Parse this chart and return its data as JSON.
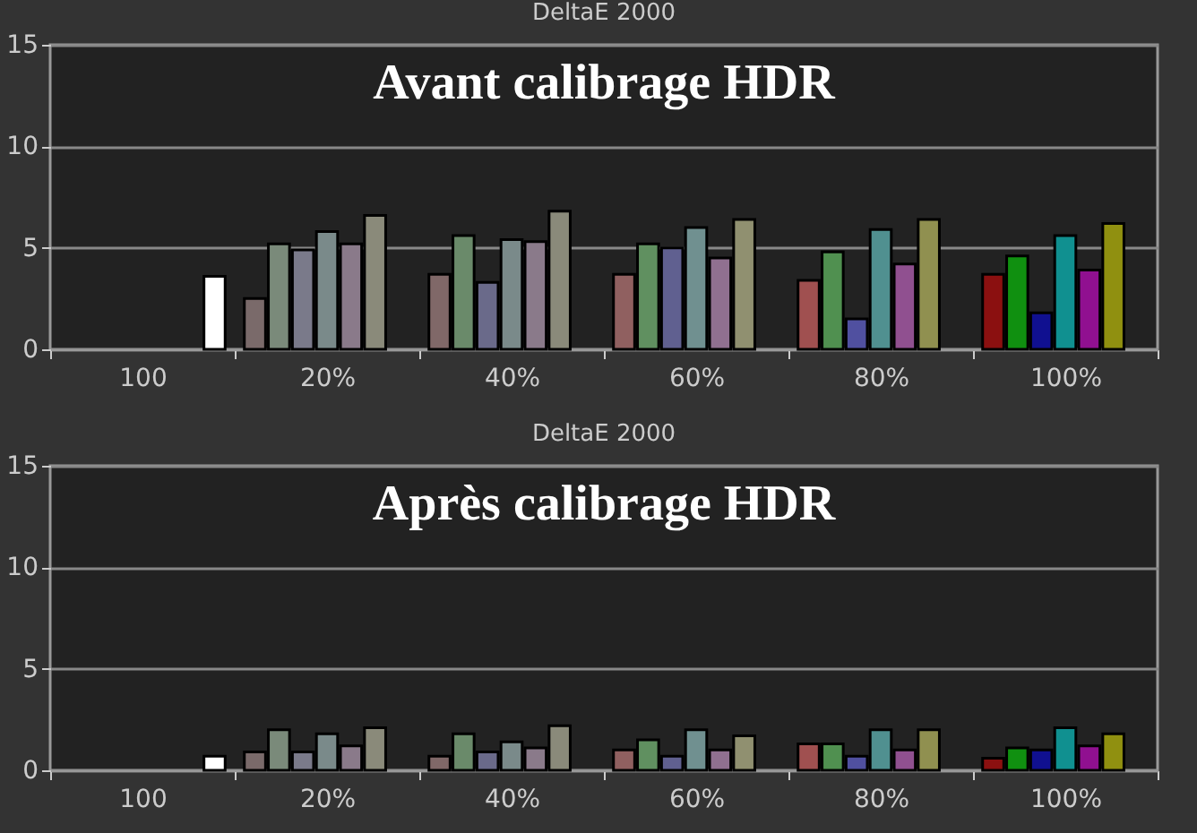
{
  "chart_data": [
    {
      "type": "bar",
      "title": "DeltaE 2000",
      "annotations": [
        "Avant calibrage HDR"
      ],
      "categories": [
        "100",
        "20%",
        "40%",
        "60%",
        "80%",
        "100%"
      ],
      "ylim": [
        0,
        15
      ],
      "yticks": [
        0,
        5,
        10,
        15
      ],
      "grid": "y",
      "series": [
        {
          "colors": [
            null,
            "#7a6a6a",
            "#806868",
            "#906060",
            "#a05050",
            "#8b1010"
          ],
          "values": [
            null,
            2.5,
            3.7,
            3.7,
            3.4,
            3.7
          ]
        },
        {
          "colors": [
            null,
            "#7a8a7a",
            "#6a8a6a",
            "#609060",
            "#509050",
            "#109010"
          ],
          "values": [
            null,
            5.2,
            5.6,
            5.2,
            4.8,
            4.6
          ]
        },
        {
          "colors": [
            null,
            "#7a7a8a",
            "#6a6a8a",
            "#606090",
            "#5050a0",
            "#101090"
          ],
          "values": [
            null,
            4.9,
            3.3,
            5.0,
            1.5,
            1.8
          ]
        },
        {
          "colors": [
            null,
            "#7a8a8a",
            "#7a8a8a",
            "#709090",
            "#509090",
            "#109090"
          ],
          "values": [
            null,
            5.8,
            5.4,
            6.0,
            5.9,
            5.6
          ]
        },
        {
          "colors": [
            null,
            "#8a7a8a",
            "#8a7a8a",
            "#907090",
            "#905090",
            "#901090"
          ],
          "values": [
            null,
            5.2,
            5.3,
            4.5,
            4.2,
            3.9
          ]
        },
        {
          "colors": [
            null,
            "#8a8a7a",
            "#8a8a7a",
            "#909070",
            "#909050",
            "#909010"
          ],
          "values": [
            null,
            6.6,
            6.8,
            6.4,
            6.4,
            6.2
          ]
        },
        {
          "colors": [
            "#ffffff",
            null,
            null,
            null,
            null,
            null
          ],
          "values": [
            3.6,
            null,
            null,
            null,
            null,
            null
          ]
        }
      ]
    },
    {
      "type": "bar",
      "title": "DeltaE 2000",
      "annotations": [
        "Après calibrage HDR"
      ],
      "categories": [
        "100",
        "20%",
        "40%",
        "60%",
        "80%",
        "100%"
      ],
      "ylim": [
        0,
        15
      ],
      "yticks": [
        0,
        5,
        10,
        15
      ],
      "grid": "y",
      "series": [
        {
          "colors": [
            null,
            "#7a6a6a",
            "#806868",
            "#906060",
            "#a05050",
            "#8b1010"
          ],
          "values": [
            null,
            0.9,
            0.7,
            1.0,
            1.3,
            0.6
          ]
        },
        {
          "colors": [
            null,
            "#7a8a7a",
            "#6a8a6a",
            "#609060",
            "#509050",
            "#109010"
          ],
          "values": [
            null,
            2.0,
            1.8,
            1.5,
            1.3,
            1.1
          ]
        },
        {
          "colors": [
            null,
            "#7a7a8a",
            "#6a6a8a",
            "#606090",
            "#5050a0",
            "#101090"
          ],
          "values": [
            null,
            0.9,
            0.9,
            0.7,
            0.7,
            1.0
          ]
        },
        {
          "colors": [
            null,
            "#7a8a8a",
            "#7a8a8a",
            "#709090",
            "#509090",
            "#109090"
          ],
          "values": [
            null,
            1.8,
            1.4,
            2.0,
            2.0,
            2.1
          ]
        },
        {
          "colors": [
            null,
            "#8a7a8a",
            "#8a7a8a",
            "#907090",
            "#905090",
            "#901090"
          ],
          "values": [
            null,
            1.2,
            1.1,
            1.0,
            1.0,
            1.2
          ]
        },
        {
          "colors": [
            null,
            "#8a8a7a",
            "#8a8a7a",
            "#909070",
            "#909050",
            "#909010"
          ],
          "values": [
            null,
            2.1,
            2.2,
            1.7,
            2.0,
            1.8
          ]
        },
        {
          "colors": [
            "#ffffff",
            null,
            null,
            null,
            null,
            null
          ],
          "values": [
            0.7,
            null,
            null,
            null,
            null,
            null
          ]
        }
      ]
    }
  ]
}
